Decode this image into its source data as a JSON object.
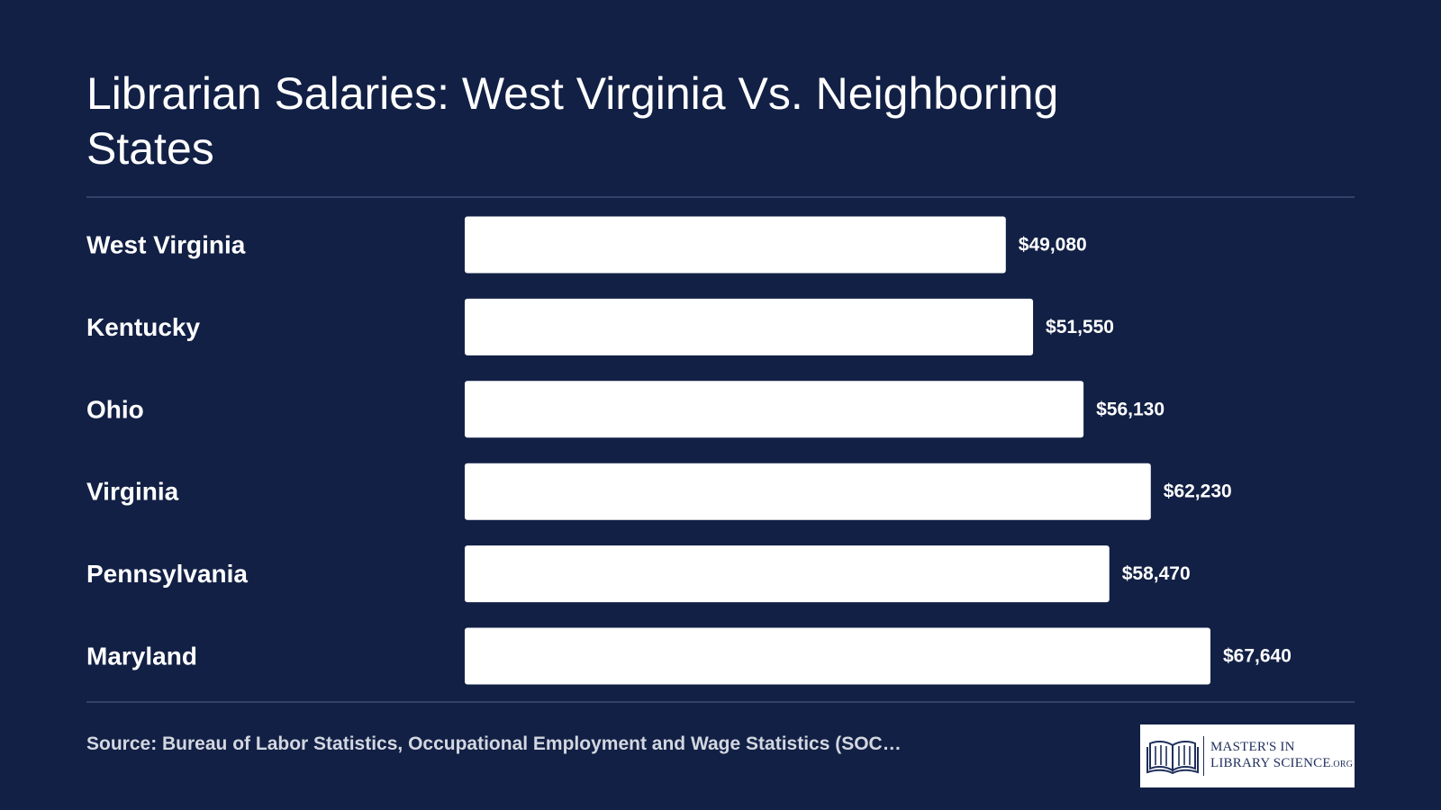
{
  "page": {
    "background": "#122045",
    "bar_color": "#ffffff",
    "text_color": "#ffffff"
  },
  "header": {
    "title": "Librarian Salaries: West Virginia Vs. Neighboring States"
  },
  "chart_data": {
    "type": "bar",
    "orientation": "horizontal",
    "title": "Librarian Salaries: West Virginia Vs. Neighboring States",
    "xlabel": "",
    "ylabel": "",
    "grid": false,
    "categories": [
      "West Virginia",
      "Kentucky",
      "Ohio",
      "Virginia",
      "Pennsylvania",
      "Maryland"
    ],
    "values": [
      49080,
      51550,
      56130,
      62230,
      58470,
      67640
    ],
    "value_labels": [
      "$49,080",
      "$51,550",
      "$56,130",
      "$62,230",
      "$58,470",
      "$67,640"
    ],
    "xlim": [
      0,
      67640
    ]
  },
  "footer": {
    "source": "Source: Bureau of Labor Statistics, Occupational Employment and Wage Statistics (SOC…",
    "logo": {
      "line1": "MASTER'S IN",
      "line2": "LIBRARY SCIENCE",
      "suffix": ".ORG",
      "icon": "open-book-icon"
    }
  }
}
